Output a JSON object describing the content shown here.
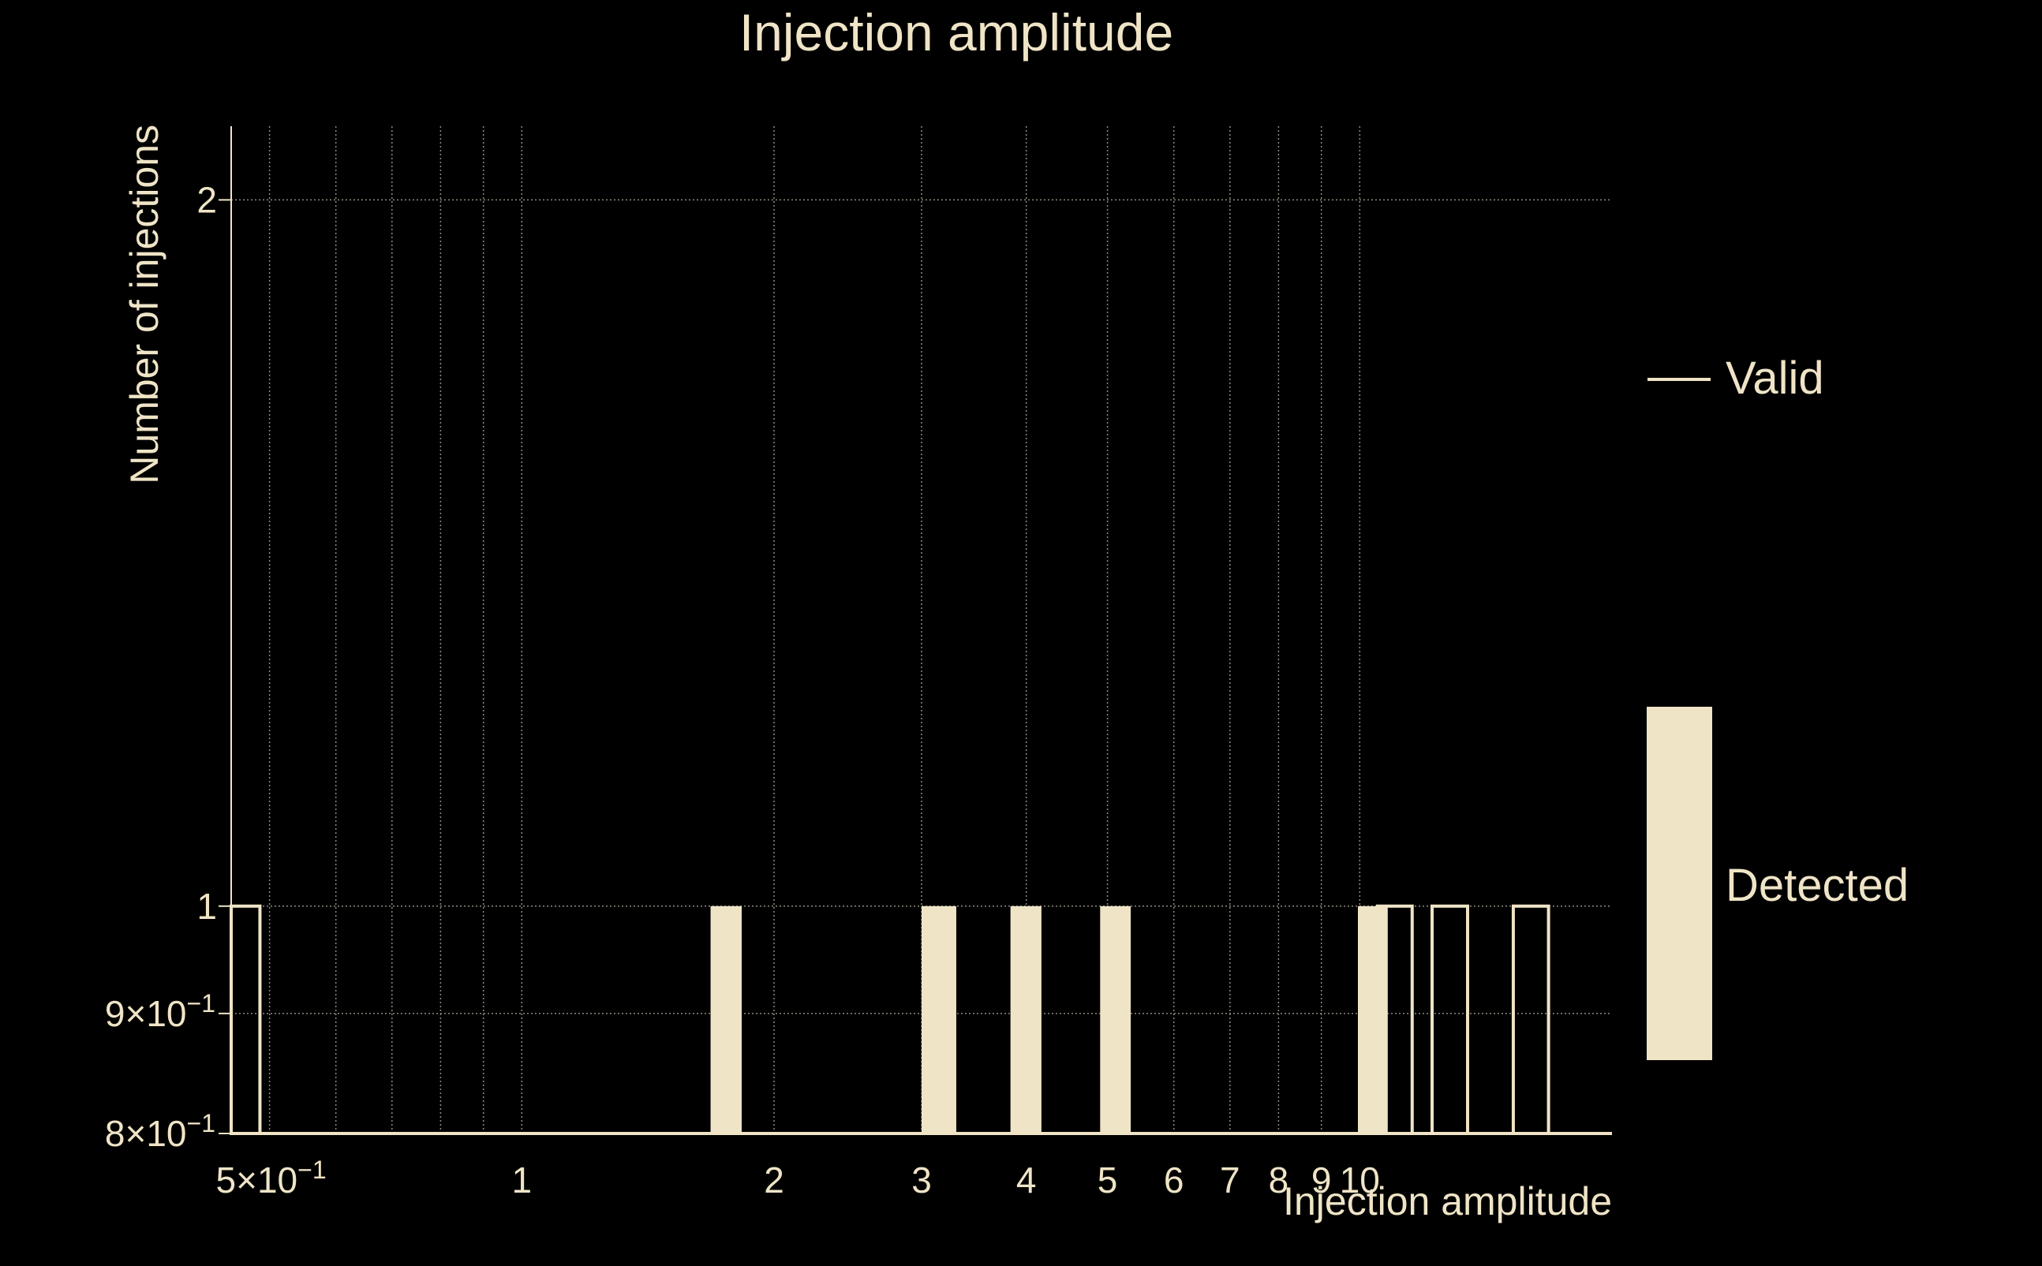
{
  "colors": {
    "background": "#000000",
    "foreground": "#efe4c6",
    "grid": "#8f8a7c"
  },
  "chart_data": {
    "type": "bar",
    "title": "Injection amplitude",
    "xlabel": "Injection amplitude",
    "ylabel": "Number of injections",
    "x_scale": "log",
    "y_scale": "log",
    "xlim": [
      0.45,
      20
    ],
    "ylim": [
      0.8,
      2.15
    ],
    "grid": true,
    "legend_position": "right",
    "x_ticks": [
      {
        "value": 0.5,
        "label": "5×10",
        "sup": "−1"
      },
      {
        "value": 1,
        "label": "1"
      },
      {
        "value": 2,
        "label": "2"
      },
      {
        "value": 3,
        "label": "3"
      },
      {
        "value": 4,
        "label": "4"
      },
      {
        "value": 5,
        "label": "5"
      },
      {
        "value": 6,
        "label": "6"
      },
      {
        "value": 7,
        "label": "7"
      },
      {
        "value": 8,
        "label": "8"
      },
      {
        "value": 9,
        "label": "9"
      },
      {
        "value": 10,
        "label": "10"
      }
    ],
    "x_minor_grid": [
      0.6,
      0.7,
      0.8,
      0.9
    ],
    "y_ticks": [
      {
        "value": 0.8,
        "label": "8×10",
        "sup": "−1"
      },
      {
        "value": 0.9,
        "label": "9×10",
        "sup": "−1"
      },
      {
        "value": 1,
        "label": "1"
      },
      {
        "value": 2,
        "label": "2"
      }
    ],
    "series": [
      {
        "name": "Valid",
        "style": "outline",
        "bins": [
          {
            "x0": 0.45,
            "x1": 0.487,
            "value": 1
          },
          {
            "x0": 10.5,
            "x1": 11.55,
            "value": 1
          },
          {
            "x0": 12.2,
            "x1": 13.45,
            "value": 1
          },
          {
            "x0": 15.25,
            "x1": 16.8,
            "value": 1
          }
        ]
      },
      {
        "name": "Detected",
        "style": "filled",
        "bins": [
          {
            "x0": 1.68,
            "x1": 1.83,
            "value": 1
          },
          {
            "x0": 3.0,
            "x1": 3.3,
            "value": 1
          },
          {
            "x0": 3.83,
            "x1": 4.17,
            "value": 1
          },
          {
            "x0": 4.9,
            "x1": 5.33,
            "value": 1
          },
          {
            "x0": 9.95,
            "x1": 10.8,
            "value": 1
          }
        ]
      }
    ],
    "legend": [
      {
        "label": "Valid",
        "style": "line"
      },
      {
        "label": "Detected",
        "style": "filled"
      }
    ]
  }
}
